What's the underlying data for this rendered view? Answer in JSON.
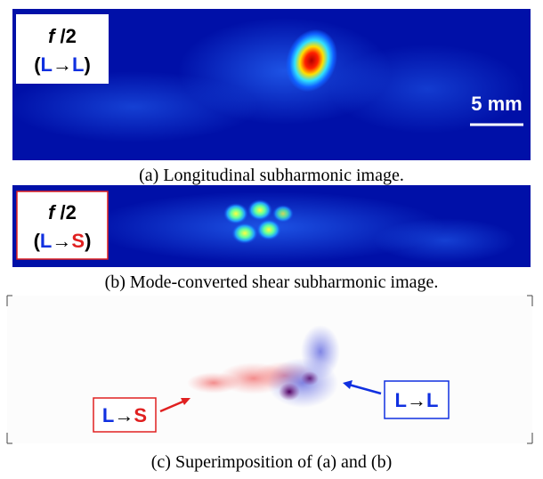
{
  "panel_a": {
    "mode": [
      "f",
      " /2"
    ],
    "transition": [
      "(",
      "L",
      "→",
      "L",
      ")"
    ],
    "scale_bar": "5 mm",
    "caption": "(a) Longitudinal subharmonic image."
  },
  "panel_b": {
    "mode": [
      "f",
      " /2"
    ],
    "transition": [
      "(",
      "L",
      "→",
      "S",
      ")"
    ],
    "caption": "(b) Mode-converted shear subharmonic image."
  },
  "panel_c": {
    "labels": [
      [
        "L",
        "→",
        "S"
      ],
      [
        "L",
        "→",
        "L"
      ]
    ],
    "caption": "(c) Superimposition of (a) and (b)"
  }
}
